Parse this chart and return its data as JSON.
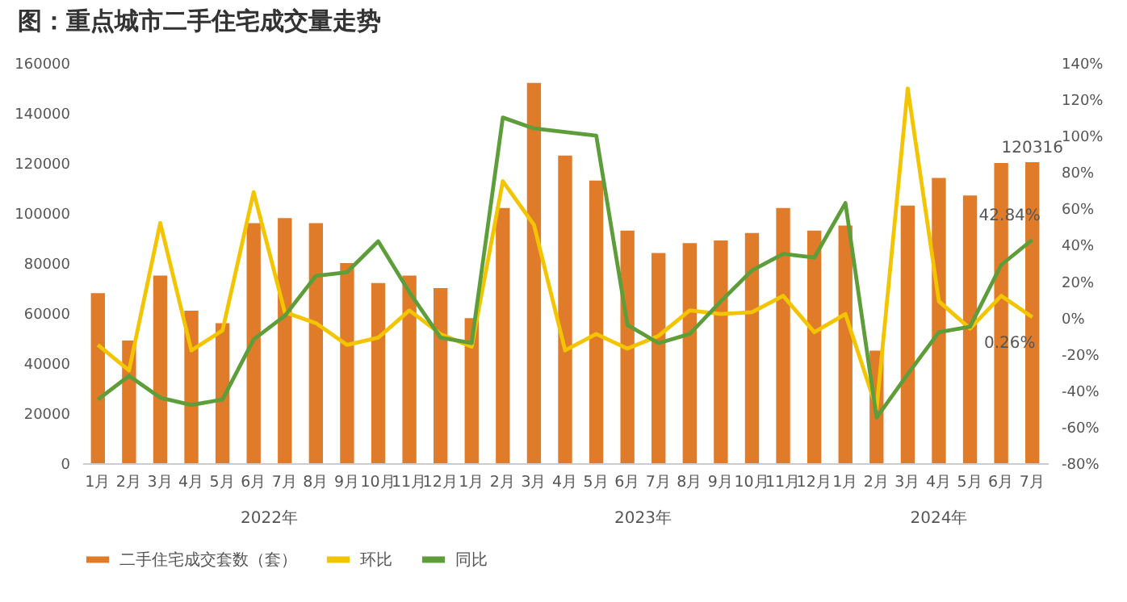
{
  "chart_data": {
    "type": "bar",
    "title": "图：重点城市二手住宅成交量走势",
    "categories": [
      "1月",
      "2月",
      "3月",
      "4月",
      "5月",
      "6月",
      "7月",
      "8月",
      "9月",
      "10月",
      "11月",
      "12月",
      "1月",
      "2月",
      "3月",
      "4月",
      "5月",
      "6月",
      "7月",
      "8月",
      "9月",
      "10月",
      "11月",
      "12月",
      "1月",
      "2月",
      "3月",
      "4月",
      "5月",
      "6月",
      "7月"
    ],
    "series": [
      {
        "name": "二手住宅成交套数（套）",
        "type": "bar",
        "color": "#e07b2a",
        "values": [
          68000,
          49000,
          75000,
          61000,
          56000,
          96000,
          98000,
          96000,
          80000,
          72000,
          75000,
          70000,
          58000,
          102000,
          152000,
          123000,
          113000,
          93000,
          84000,
          88000,
          89000,
          92000,
          102000,
          93000,
          95000,
          45000,
          103000,
          114000,
          107000,
          120000,
          120316
        ],
        "value_labels": [
          null,
          null,
          null,
          null,
          null,
          null,
          null,
          null,
          null,
          null,
          null,
          null,
          null,
          null,
          null,
          null,
          null,
          null,
          null,
          null,
          null,
          null,
          null,
          null,
          null,
          null,
          null,
          null,
          null,
          null,
          "120316"
        ]
      },
      {
        "name": "环比",
        "type": "line",
        "axis": "y2",
        "color": "#f2c500",
        "values": [
          -15,
          -29,
          52,
          -18,
          -7,
          69,
          3,
          -3,
          -15,
          -11,
          4,
          -9,
          -16,
          75,
          51,
          -18,
          -9,
          -17,
          -10,
          4,
          2,
          3,
          12,
          -8,
          2,
          -50,
          126,
          9,
          -6,
          12,
          0.26
        ],
        "value_labels": [
          null,
          null,
          null,
          null,
          null,
          null,
          null,
          null,
          null,
          null,
          null,
          null,
          null,
          null,
          null,
          null,
          null,
          null,
          null,
          null,
          null,
          null,
          null,
          null,
          null,
          null,
          null,
          null,
          null,
          null,
          "0.26%"
        ]
      },
      {
        "name": "同比",
        "type": "line",
        "axis": "y2",
        "color": "#5e9e3a",
        "values": [
          -45,
          -32,
          -44,
          -48,
          -45,
          -12,
          1,
          23,
          25,
          42,
          14,
          -11,
          -14,
          110,
          104,
          102,
          100,
          -4,
          -14,
          -9,
          9,
          26,
          35,
          33,
          63,
          -55,
          -31,
          -8,
          -5,
          29,
          42.84
        ],
        "value_labels": [
          null,
          null,
          null,
          null,
          null,
          null,
          null,
          null,
          null,
          null,
          null,
          null,
          null,
          null,
          null,
          null,
          null,
          null,
          null,
          null,
          null,
          null,
          null,
          null,
          null,
          null,
          null,
          null,
          null,
          null,
          "42.84%"
        ]
      }
    ],
    "ylim": [
      0,
      160000
    ],
    "yticks": [
      0,
      20000,
      40000,
      60000,
      80000,
      100000,
      120000,
      140000,
      160000
    ],
    "y2lim": [
      -80,
      140
    ],
    "y2ticks": [
      {
        "value": -80,
        "label": "-80%"
      },
      {
        "value": -60,
        "label": "-60%"
      },
      {
        "value": -40,
        "label": "-40%"
      },
      {
        "value": -20,
        "label": "-20%"
      },
      {
        "value": 0,
        "label": "0%"
      },
      {
        "value": 20,
        "label": "20%"
      },
      {
        "value": 40,
        "label": "40%"
      },
      {
        "value": 60,
        "label": "60%"
      },
      {
        "value": 80,
        "label": "80%"
      },
      {
        "value": 100,
        "label": "100%"
      },
      {
        "value": 120,
        "label": "120%"
      },
      {
        "value": 140,
        "label": "140%"
      }
    ],
    "annotations": [
      "2022年",
      "2023年",
      "2024年"
    ],
    "legend": "bottom",
    "marker": "none",
    "line_style": "solid"
  }
}
